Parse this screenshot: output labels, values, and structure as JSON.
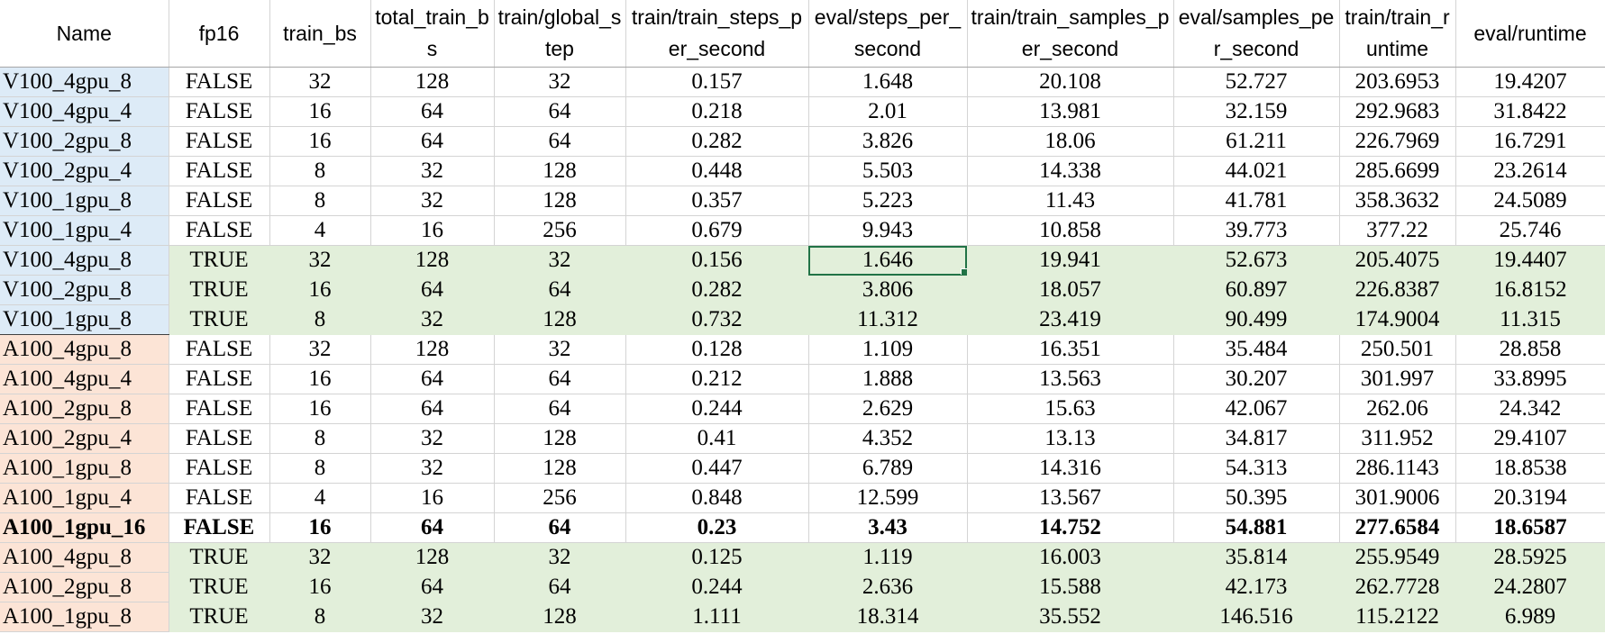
{
  "columns": [
    "Name",
    "fp16",
    "train_bs",
    "total_train_bs",
    "train/global_step",
    "train/train_steps_per_second",
    "eval/steps_per_second",
    "train/train_samples_per_second",
    "eval/samples_per_second",
    "train/train_runtime",
    "eval/runtime"
  ],
  "rows": [
    {
      "group": "v100",
      "fp16": false,
      "bold": false,
      "cells": [
        "V100_4gpu_8",
        "FALSE",
        "32",
        "128",
        "32",
        "0.157",
        "1.648",
        "20.108",
        "52.727",
        "203.6953",
        "19.4207"
      ]
    },
    {
      "group": "v100",
      "fp16": false,
      "bold": false,
      "cells": [
        "V100_4gpu_4",
        "FALSE",
        "16",
        "64",
        "64",
        "0.218",
        "2.01",
        "13.981",
        "32.159",
        "292.9683",
        "31.8422"
      ]
    },
    {
      "group": "v100",
      "fp16": false,
      "bold": false,
      "cells": [
        "V100_2gpu_8",
        "FALSE",
        "16",
        "64",
        "64",
        "0.282",
        "3.826",
        "18.06",
        "61.211",
        "226.7969",
        "16.7291"
      ]
    },
    {
      "group": "v100",
      "fp16": false,
      "bold": false,
      "cells": [
        "V100_2gpu_4",
        "FALSE",
        "8",
        "32",
        "128",
        "0.448",
        "5.503",
        "14.338",
        "44.021",
        "285.6699",
        "23.2614"
      ]
    },
    {
      "group": "v100",
      "fp16": false,
      "bold": false,
      "cells": [
        "V100_1gpu_8",
        "FALSE",
        "8",
        "32",
        "128",
        "0.357",
        "5.223",
        "11.43",
        "41.781",
        "358.3632",
        "24.5089"
      ]
    },
    {
      "group": "v100",
      "fp16": false,
      "bold": false,
      "cells": [
        "V100_1gpu_4",
        "FALSE",
        "4",
        "16",
        "256",
        "0.679",
        "9.943",
        "10.858",
        "39.773",
        "377.22",
        "25.746"
      ]
    },
    {
      "group": "v100",
      "fp16": true,
      "bold": false,
      "cells": [
        "V100_4gpu_8",
        "TRUE",
        "32",
        "128",
        "32",
        "0.156",
        "1.646",
        "19.941",
        "52.673",
        "205.4075",
        "19.4407"
      ]
    },
    {
      "group": "v100",
      "fp16": true,
      "bold": false,
      "cells": [
        "V100_2gpu_8",
        "TRUE",
        "16",
        "64",
        "64",
        "0.282",
        "3.806",
        "18.057",
        "60.897",
        "226.8387",
        "16.8152"
      ]
    },
    {
      "group": "v100",
      "fp16": true,
      "bold": false,
      "cells": [
        "V100_1gpu_8",
        "TRUE",
        "8",
        "32",
        "128",
        "0.732",
        "11.312",
        "23.419",
        "90.499",
        "174.9004",
        "11.315"
      ]
    },
    {
      "group": "a100",
      "fp16": false,
      "bold": false,
      "cells": [
        "A100_4gpu_8",
        "FALSE",
        "32",
        "128",
        "32",
        "0.128",
        "1.109",
        "16.351",
        "35.484",
        "250.501",
        "28.858"
      ]
    },
    {
      "group": "a100",
      "fp16": false,
      "bold": false,
      "cells": [
        "A100_4gpu_4",
        "FALSE",
        "16",
        "64",
        "64",
        "0.212",
        "1.888",
        "13.563",
        "30.207",
        "301.997",
        "33.8995"
      ]
    },
    {
      "group": "a100",
      "fp16": false,
      "bold": false,
      "cells": [
        "A100_2gpu_8",
        "FALSE",
        "16",
        "64",
        "64",
        "0.244",
        "2.629",
        "15.63",
        "42.067",
        "262.06",
        "24.342"
      ]
    },
    {
      "group": "a100",
      "fp16": false,
      "bold": false,
      "cells": [
        "A100_2gpu_4",
        "FALSE",
        "8",
        "32",
        "128",
        "0.41",
        "4.352",
        "13.13",
        "34.817",
        "311.952",
        "29.4107"
      ]
    },
    {
      "group": "a100",
      "fp16": false,
      "bold": false,
      "cells": [
        "A100_1gpu_8",
        "FALSE",
        "8",
        "32",
        "128",
        "0.447",
        "6.789",
        "14.316",
        "54.313",
        "286.1143",
        "18.8538"
      ]
    },
    {
      "group": "a100",
      "fp16": false,
      "bold": false,
      "cells": [
        "A100_1gpu_4",
        "FALSE",
        "4",
        "16",
        "256",
        "0.848",
        "12.599",
        "13.567",
        "50.395",
        "301.9006",
        "20.3194"
      ]
    },
    {
      "group": "a100",
      "fp16": false,
      "bold": true,
      "cells": [
        "A100_1gpu_16",
        "FALSE",
        "16",
        "64",
        "64",
        "0.23",
        "3.43",
        "14.752",
        "54.881",
        "277.6584",
        "18.6587"
      ]
    },
    {
      "group": "a100",
      "fp16": true,
      "bold": false,
      "cells": [
        "A100_4gpu_8",
        "TRUE",
        "32",
        "128",
        "32",
        "0.125",
        "1.119",
        "16.003",
        "35.814",
        "255.9549",
        "28.5925"
      ]
    },
    {
      "group": "a100",
      "fp16": true,
      "bold": false,
      "cells": [
        "A100_2gpu_8",
        "TRUE",
        "16",
        "64",
        "64",
        "0.244",
        "2.636",
        "15.588",
        "42.173",
        "262.7728",
        "24.2807"
      ]
    },
    {
      "group": "a100",
      "fp16": true,
      "bold": false,
      "cells": [
        "A100_1gpu_8",
        "TRUE",
        "8",
        "32",
        "128",
        "1.111",
        "18.314",
        "35.552",
        "146.516",
        "115.2122",
        "6.989"
      ]
    }
  ],
  "selected_cell": {
    "row": 6,
    "col": 6
  },
  "colors": {
    "v100_name_fill": "#ddebf7",
    "a100_name_fill": "#fce4d6",
    "fp16_true_fill": "#e2efda",
    "selection_border": "#217346",
    "gridline": "#d4d4d4"
  }
}
